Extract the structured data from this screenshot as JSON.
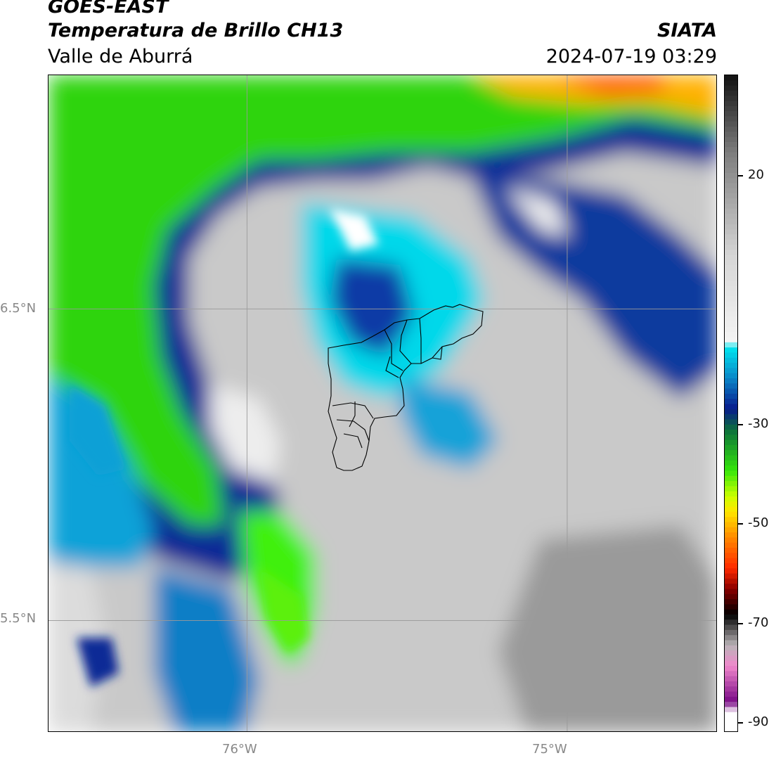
{
  "header": {
    "satellite": "GOES-EAST",
    "product": "Temperatura de Brillo CH13",
    "region": "Valle de Aburrá",
    "agency": "SIATA",
    "datetime": "2024-07-19 03:29"
  },
  "map": {
    "lat_labels": [
      "6.5°N",
      "5.5°N"
    ],
    "lon_labels": [
      "76°W",
      "75°W"
    ],
    "lat_values": [
      6.5,
      5.5
    ],
    "lon_values": [
      -76.0,
      -75.0
    ],
    "extent": {
      "lon_min": -76.62,
      "lon_max": -74.53,
      "lat_min": 5.14,
      "lat_max": 7.25
    },
    "overlay": "municipal boundaries of Valle de Aburrá"
  },
  "colorbar": {
    "tick_labels": [
      "20",
      "-30",
      "-50",
      "-70",
      "-90"
    ],
    "tick_values": [
      20,
      -30,
      -50,
      -70,
      -90
    ],
    "range": [
      -93,
      35
    ],
    "units_shown": false,
    "palette": [
      {
        "t": 35,
        "c": "#111111"
      },
      {
        "t": 20,
        "c": "#7d7d7d"
      },
      {
        "t": 0,
        "c": "#d5d5d5"
      },
      {
        "t": -17,
        "c": "#f5f5f5"
      },
      {
        "t": -18,
        "c": "#00e5ef"
      },
      {
        "t": -24,
        "c": "#0a86c8"
      },
      {
        "t": -30,
        "c": "#081a8c"
      },
      {
        "t": -34,
        "c": "#0b6f3d"
      },
      {
        "t": -42,
        "c": "#35e60a"
      },
      {
        "t": -47,
        "c": "#ccff00"
      },
      {
        "t": -50,
        "c": "#ffe600"
      },
      {
        "t": -55,
        "c": "#ff8a00"
      },
      {
        "t": -61,
        "c": "#ff2a00"
      },
      {
        "t": -65,
        "c": "#8a0000"
      },
      {
        "t": -70,
        "c": "#000000"
      },
      {
        "t": -76,
        "c": "#b9b4b7"
      },
      {
        "t": -80,
        "c": "#f088cc"
      },
      {
        "t": -87,
        "c": "#7a0a86"
      },
      {
        "t": -89,
        "c": "#ffffff"
      },
      {
        "t": -93,
        "c": "#ffffff"
      }
    ]
  }
}
